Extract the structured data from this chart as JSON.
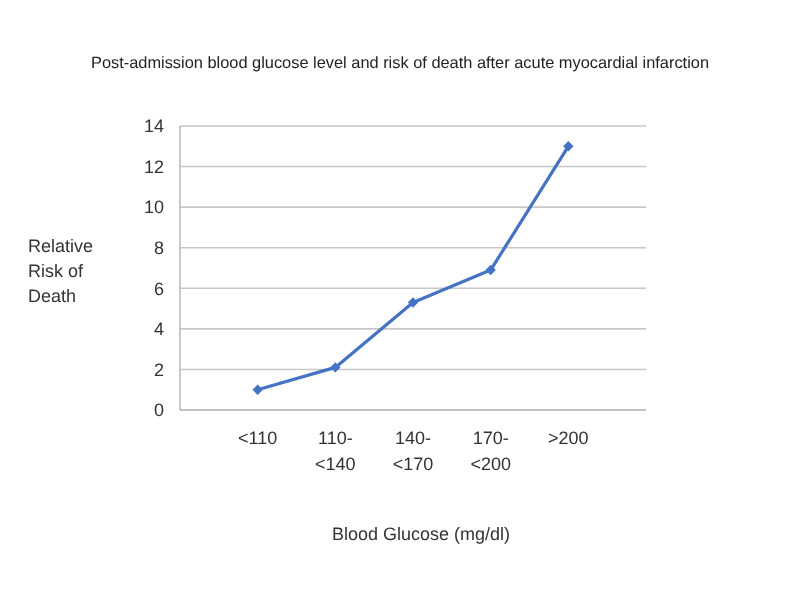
{
  "chart_data": {
    "type": "line",
    "title": "Post-admission blood glucose level and risk of death after acute myocardial infarction",
    "xlabel": "Blood Glucose (mg/dl)",
    "ylabel": "Relative Risk of Death",
    "categories": [
      null,
      "<110",
      "110-<140",
      "140-<170",
      "170-<200",
      ">200",
      null
    ],
    "series": [
      {
        "color": "#4472c4",
        "values": [
          null,
          1,
          2.1,
          5.3,
          6.9,
          13,
          null
        ]
      }
    ],
    "ylim": [
      0,
      14
    ],
    "yticks": [
      0,
      2,
      4,
      6,
      8,
      10,
      12,
      14
    ],
    "grid": "y",
    "marker": "diamond",
    "line_style": "solid"
  }
}
